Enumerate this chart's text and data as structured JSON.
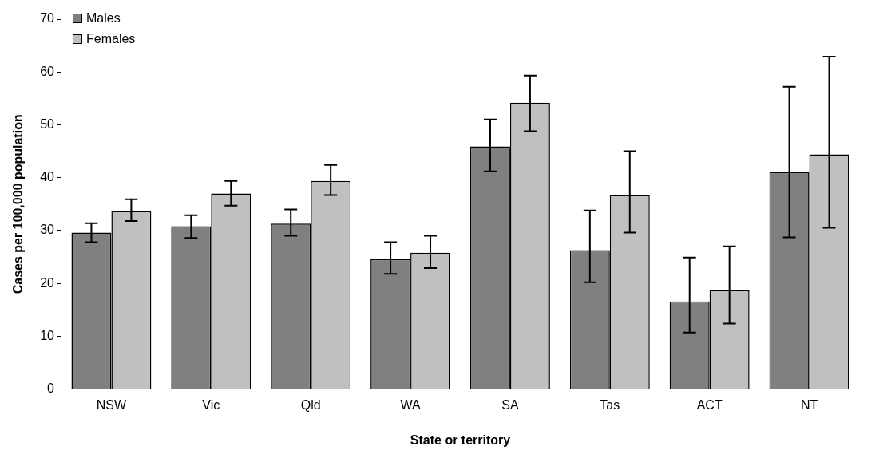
{
  "chart_data": {
    "type": "bar",
    "xlabel": "State or territory",
    "ylabel": "Cases per 100,000 population",
    "categories": [
      "NSW",
      "Vic",
      "Qld",
      "WA",
      "SA",
      "Tas",
      "ACT",
      "NT"
    ],
    "series": [
      {
        "name": "Males",
        "color": "#808080",
        "values": [
          29.6,
          30.8,
          31.3,
          24.6,
          45.9,
          26.3,
          16.6,
          41.1
        ],
        "errors": [
          [
            27.8,
            31.4
          ],
          [
            28.6,
            32.9
          ],
          [
            29,
            34
          ],
          [
            21.8,
            27.8
          ],
          [
            41.2,
            51
          ],
          [
            20.2,
            33.8
          ],
          [
            10.7,
            24.9
          ],
          [
            28.7,
            57.2
          ]
        ]
      },
      {
        "name": "Females",
        "color": "#c0c0c0",
        "values": [
          33.7,
          37,
          39.4,
          25.8,
          54.2,
          36.7,
          18.7,
          44.4
        ],
        "errors": [
          [
            31.8,
            35.9
          ],
          [
            34.7,
            39.4
          ],
          [
            36.7,
            42.4
          ],
          [
            22.9,
            29
          ],
          [
            48.8,
            59.3
          ],
          [
            29.6,
            45
          ],
          [
            12.4,
            27
          ],
          [
            30.5,
            62.9
          ]
        ]
      }
    ],
    "ylim": [
      0,
      70
    ],
    "yticks": [
      0,
      10,
      20,
      30,
      40,
      50,
      60,
      70
    ],
    "grid": false,
    "legend": "top left"
  }
}
